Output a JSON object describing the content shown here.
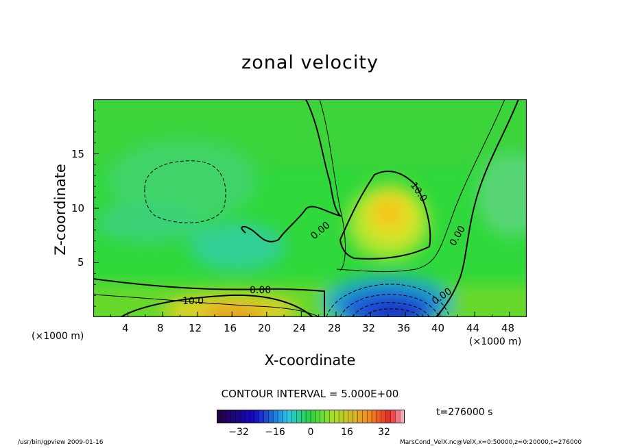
{
  "chart_data": {
    "type": "heatmap",
    "title": "zonal velocity",
    "xlabel": "X-coordinate",
    "ylabel": "Z-coordinate",
    "x_unit": "(×1000 m)",
    "y_unit": "(×1000 m)",
    "xlim": [
      0,
      50
    ],
    "ylim": [
      0,
      20
    ],
    "x_ticks": [
      "4",
      "8",
      "12",
      "16",
      "20",
      "24",
      "28",
      "32",
      "36",
      "40",
      "44",
      "48"
    ],
    "y_ticks": [
      "5",
      "10",
      "15"
    ],
    "contour_labels": [
      "10.0",
      "0.00",
      "0.00",
      "10.0",
      "0.00",
      "0.00"
    ],
    "contour_interval": "CONTOUR INTERVAL = 5.000E+00",
    "colorbar": {
      "range": [
        -40,
        40
      ],
      "ticks": [
        "−32",
        "−16",
        "0",
        "16",
        "32"
      ]
    },
    "features": [
      {
        "kind": "max",
        "x": 34,
        "z": 9.5,
        "value": 14
      },
      {
        "kind": "min",
        "x": 34,
        "z": 1.0,
        "value": -30
      },
      {
        "kind": "max",
        "x": 16,
        "z": 0.5,
        "value": 18
      }
    ],
    "time": "t=276000 s",
    "footer_left": "/usr/bin/gpview   2009-01-16",
    "footer_right": "MarsCond_VelX.nc@VelX,x=0:50000,z=0:20000,t=276000"
  }
}
